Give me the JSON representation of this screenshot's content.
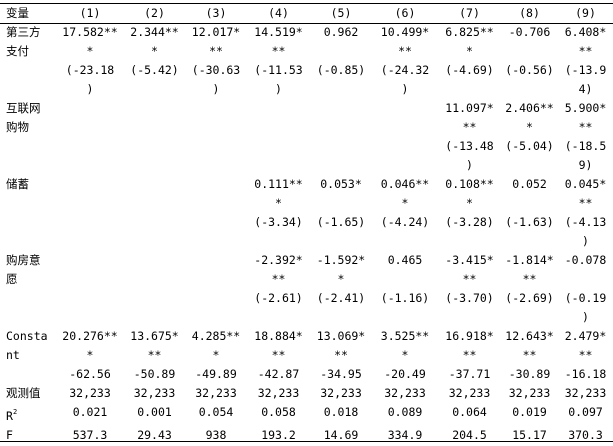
{
  "header": {
    "variable": "变量",
    "columns": [
      "(1)",
      "(2)",
      "(3)",
      "(4)",
      "(5)",
      "(6)",
      "(7)",
      "(8)",
      "(9)"
    ]
  },
  "rows": [
    {
      "key": "third_party_payment",
      "label_lines": [
        "第三方",
        "支付"
      ],
      "cells": [
        [
          "17.582**",
          "*",
          "(-23.18",
          ")"
        ],
        [
          "2.344**",
          "*",
          "(-5.42)"
        ],
        [
          "12.017*",
          "**",
          "(-30.63",
          ")"
        ],
        [
          "14.519*",
          "**",
          "(-11.53",
          ")"
        ],
        [
          "0.962",
          "",
          "(-0.85)"
        ],
        [
          "10.499*",
          "**",
          "(-24.32",
          ")"
        ],
        [
          "6.825**",
          "*",
          "(-4.69)"
        ],
        [
          "-0.706",
          "",
          "(-0.56)"
        ],
        [
          "6.408*",
          "**",
          "(-13.9",
          "4)"
        ]
      ]
    },
    {
      "key": "internet_shopping",
      "label_lines": [
        "互联网",
        "购物"
      ],
      "cells": [
        [],
        [],
        [],
        [],
        [],
        [],
        [
          "11.097*",
          "**",
          "(-13.48",
          ")"
        ],
        [
          "2.406**",
          "*",
          "(-5.04)"
        ],
        [
          "5.900*",
          "**",
          "(-18.5",
          "9)"
        ]
      ]
    },
    {
      "key": "savings",
      "label_lines": [
        "储蓄"
      ],
      "cells": [
        [],
        [],
        [],
        [
          "0.111**",
          "*",
          "(-3.34)"
        ],
        [
          "0.053*",
          "",
          "(-1.65)"
        ],
        [
          "0.046**",
          "*",
          "(-4.24)"
        ],
        [
          "0.108**",
          "*",
          "(-3.28)"
        ],
        [
          "0.052",
          "",
          "(-1.63)"
        ],
        [
          "0.045*",
          "**",
          "(-4.13",
          ")"
        ]
      ]
    },
    {
      "key": "house_purchase_intention",
      "label_lines": [
        "购房意",
        "愿"
      ],
      "cells": [
        [],
        [],
        [],
        [
          "-2.392*",
          "**",
          "(-2.61)"
        ],
        [
          "-1.592*",
          "*",
          "(-2.41)"
        ],
        [
          "0.465",
          "",
          "(-1.16)"
        ],
        [
          "-3.415*",
          "**",
          "(-3.70)"
        ],
        [
          "-1.814*",
          "**",
          "(-2.69)"
        ],
        [
          "-0.078",
          "",
          "(-0.19",
          ")"
        ]
      ]
    },
    {
      "key": "constant",
      "label_lines": [
        "Consta",
        "nt"
      ],
      "cells": [
        [
          "20.276**",
          "*",
          "-62.56"
        ],
        [
          "13.675*",
          "**",
          "-50.89"
        ],
        [
          "4.285**",
          "*",
          "-49.89"
        ],
        [
          "18.884*",
          "**",
          "-42.87"
        ],
        [
          "13.069*",
          "**",
          "-34.95"
        ],
        [
          "3.525**",
          "*",
          "-20.49"
        ],
        [
          "16.918*",
          "**",
          "-37.71"
        ],
        [
          "12.643*",
          "**",
          "-30.89"
        ],
        [
          "2.479*",
          "**",
          "-16.18"
        ]
      ]
    }
  ],
  "stats": [
    {
      "key": "observations",
      "label": "观测值",
      "values": [
        "32,233",
        "32,233",
        "32,233",
        "32,233",
        "32,233",
        "32,233",
        "32,233",
        "32,233",
        "32,233"
      ]
    },
    {
      "key": "r2",
      "label": "R",
      "sup": "2",
      "values": [
        "0.021",
        "0.001",
        "0.054",
        "0.058",
        "0.018",
        "0.089",
        "0.064",
        "0.019",
        "0.097"
      ]
    },
    {
      "key": "f",
      "label": "F",
      "values": [
        "537.3",
        "29.43",
        "938",
        "193.2",
        "14.69",
        "334.9",
        "204.5",
        "15.17",
        "370.3"
      ]
    }
  ]
}
